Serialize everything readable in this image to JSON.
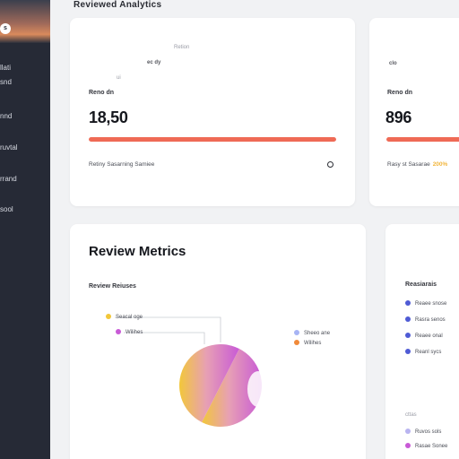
{
  "header": {
    "title": "Reviewed Analytics"
  },
  "sidebar": {
    "logo": "s",
    "items": [
      {
        "label": "llati"
      },
      {
        "label": "snd"
      },
      {
        "label": "nnd"
      },
      {
        "label": "ruvtal"
      },
      {
        "label": "rrand"
      },
      {
        "label": "sool"
      }
    ]
  },
  "kpis": [
    {
      "hint_top": "Retion",
      "hint_mid": "ec dy",
      "hint_small": "ui",
      "label": "Reno dn",
      "value": "18,50",
      "progress": 1.0,
      "footer": "Retiny Sasarning Samiee",
      "footer_accent": ""
    },
    {
      "hint_top": "",
      "hint_mid": "clo",
      "hint_small": "",
      "label": "Reno dn",
      "value": "896",
      "progress": 1.0,
      "footer": "Rasy st Sasarae",
      "footer_accent": "200%"
    }
  ],
  "review": {
    "title": "Review Metrics",
    "subtitle": "Review Reiuses",
    "legend_left": [
      {
        "label": "Seacal oge",
        "color": "#f2c73a"
      },
      {
        "label": "Wilihes",
        "color": "#c85ad6"
      }
    ],
    "legend_right": [
      {
        "label": "Sheeo ane",
        "color": "#a7b4f4"
      },
      {
        "label": "Wilihes",
        "color": "#f08a3a"
      }
    ]
  },
  "side_panel": {
    "title": "Reasiarais",
    "items": [
      {
        "label": "Reaee snose",
        "color": "#4f5bd5"
      },
      {
        "label": "Rasra senos",
        "color": "#4f5bd5"
      },
      {
        "label": "Reaee onal",
        "color": "#4f5bd5"
      },
      {
        "label": "Reanl sycs",
        "color": "#4f5bd5"
      }
    ],
    "bottom_hint": "cttas",
    "bottom_items": [
      {
        "label": "Ruvos sols",
        "color": "#b9b4f0"
      },
      {
        "label": "Rasae Sonee",
        "color": "#c85ad6"
      }
    ]
  },
  "chart_data": {
    "type": "pie",
    "title": "",
    "series": [
      {
        "label": "Seacal oge",
        "value": 50,
        "color": "#f2c73a"
      },
      {
        "label": "Wilihes",
        "value": 50,
        "color": "#c85ad6"
      }
    ]
  }
}
